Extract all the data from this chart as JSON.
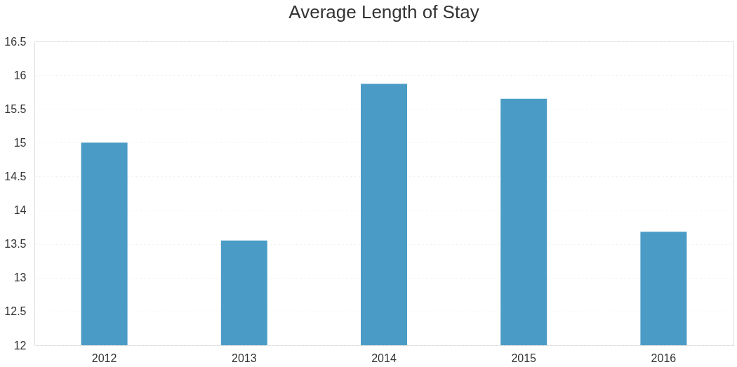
{
  "chart_data": {
    "type": "bar",
    "title": "Average Length of Stay",
    "categories": [
      "2012",
      "2013",
      "2014",
      "2015",
      "2016"
    ],
    "values": [
      15.0,
      13.55,
      15.87,
      15.65,
      13.68
    ],
    "color": "#4a9cc6",
    "ylim": [
      12,
      16.5
    ],
    "yticks": [
      12,
      12.5,
      13,
      13.5,
      14,
      14.5,
      15,
      15.5,
      16,
      16.5
    ],
    "grid": "y"
  }
}
